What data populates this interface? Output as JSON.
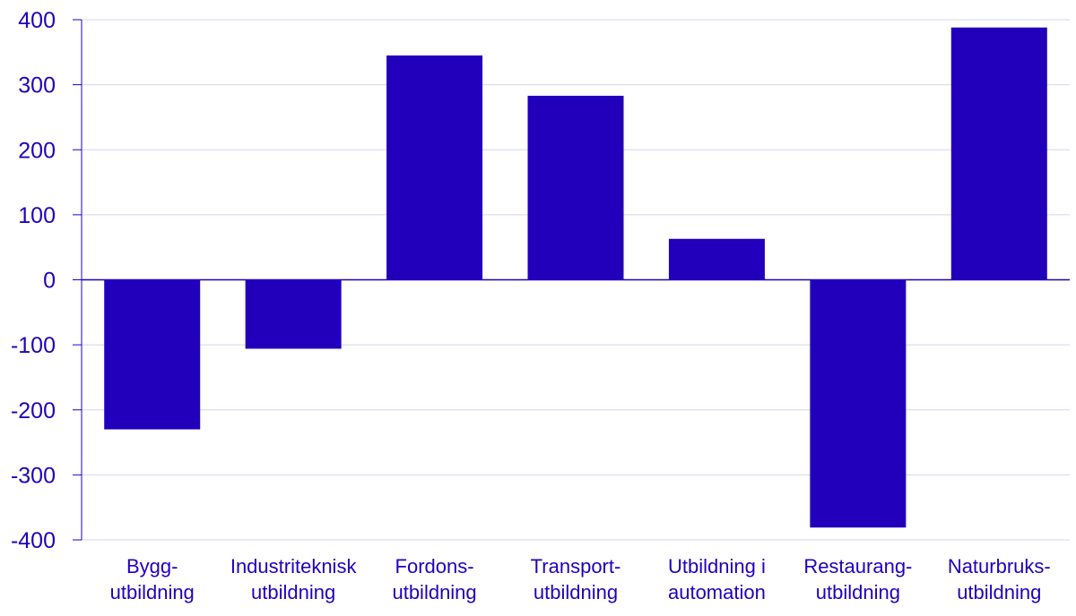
{
  "chart_data": {
    "type": "bar",
    "title": "",
    "xlabel": "",
    "ylabel": "",
    "categories": [
      [
        "Bygg-",
        "utbildning"
      ],
      [
        "Industriteknisk",
        "utbildning"
      ],
      [
        "Fordons-",
        "utbildning"
      ],
      [
        "Transport-",
        "utbildning"
      ],
      [
        "Utbildning i",
        "automation"
      ],
      [
        "Restaurang-",
        "utbildning"
      ],
      [
        "Naturbruks-",
        "utbildning"
      ]
    ],
    "values": [
      -230,
      -106,
      345,
      283,
      63,
      -381,
      388
    ],
    "ylim": [
      -400,
      400
    ],
    "yticks": [
      -400,
      -300,
      -200,
      -100,
      0,
      100,
      200,
      300,
      400
    ],
    "ytick_labels": [
      "-400",
      "-300",
      "-200",
      "-100",
      "0",
      "100",
      "200",
      "300",
      "400"
    ],
    "grid": true,
    "colors": {
      "bar": "#2200BB",
      "text": "#2200BB",
      "grid": "#D4D4EE",
      "axis": "#2200BB"
    }
  }
}
